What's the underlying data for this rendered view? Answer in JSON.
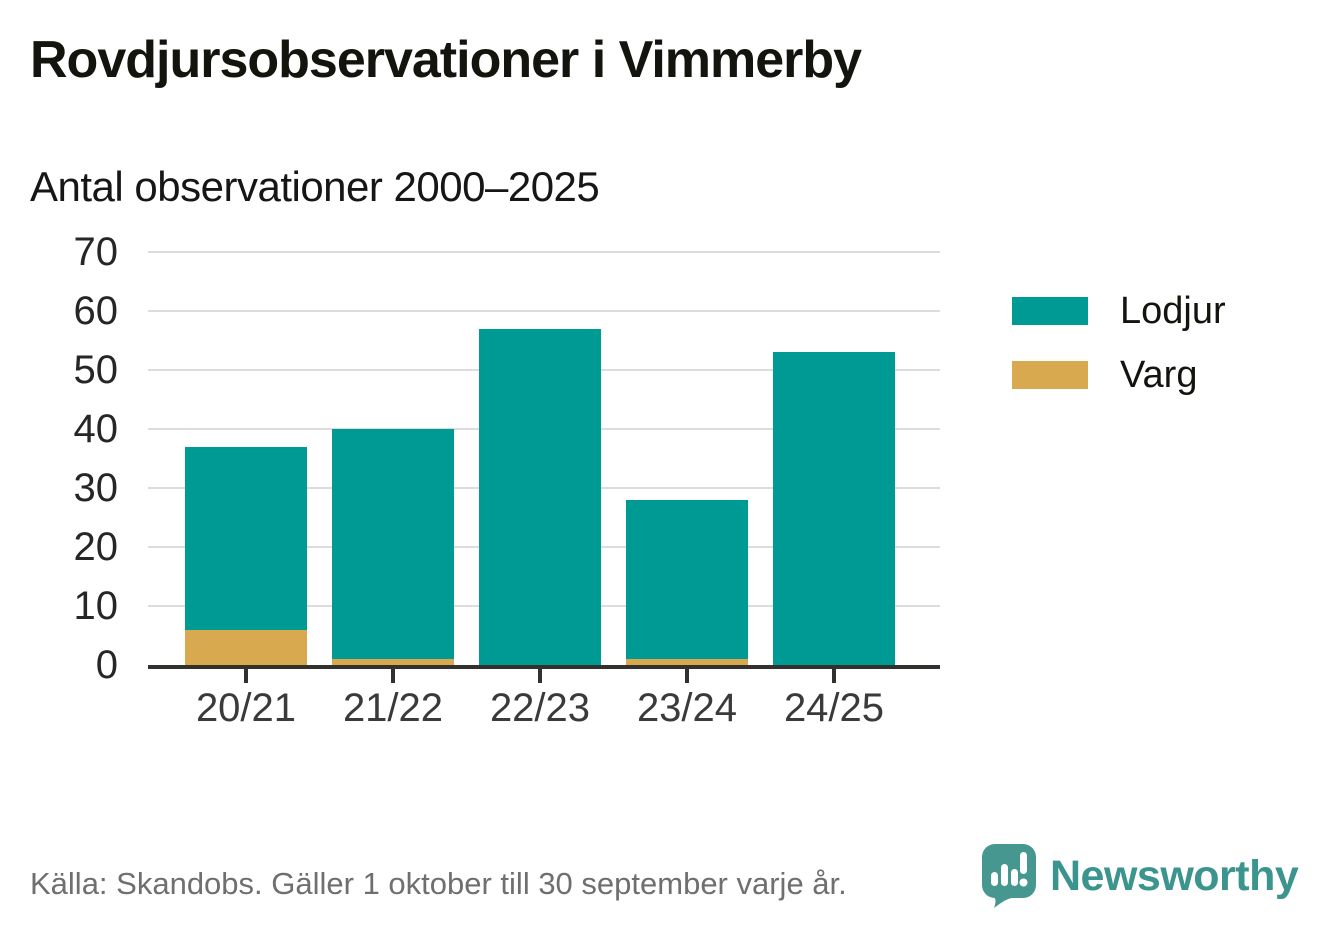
{
  "header": {
    "title": "Rovdjursobservationer i Vimmerby",
    "subtitle": "Antal observationer 2000–2025"
  },
  "chart_data": {
    "type": "bar",
    "stacked": true,
    "title": "Rovdjursobservationer i Vimmerby",
    "subtitle": "Antal observationer 2000–2025",
    "categories": [
      "20/21",
      "21/22",
      "22/23",
      "23/24",
      "24/25"
    ],
    "series": [
      {
        "name": "Lodjur",
        "color": "#009a94",
        "values": [
          31,
          39,
          57,
          27,
          53
        ]
      },
      {
        "name": "Varg",
        "color": "#d9a950",
        "values": [
          6,
          1,
          0,
          1,
          0
        ]
      }
    ],
    "totals": [
      37,
      40,
      57,
      28,
      53
    ],
    "stack_order_bottom_to_top": [
      "Varg",
      "Lodjur"
    ],
    "ylim": [
      0,
      70
    ],
    "yticks": [
      0,
      10,
      20,
      30,
      40,
      50,
      60,
      70
    ],
    "xlabel": "",
    "ylabel": "",
    "grid": true,
    "legend_position": "right"
  },
  "footer": {
    "source": "Källa: Skandobs. Gäller 1 oktober till 30 september varje år.",
    "brand": "Newsworthy",
    "brand_color": "#3b948d"
  }
}
